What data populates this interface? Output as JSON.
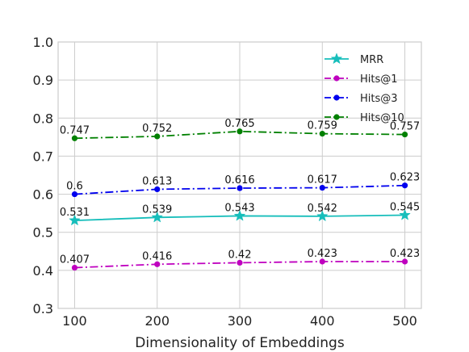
{
  "chart_data": {
    "type": "line",
    "title": "",
    "xlabel": "Dimensionality of Embeddings",
    "ylabel": "",
    "x": [
      100,
      200,
      300,
      400,
      500
    ],
    "x_ticks": [
      "100",
      "200",
      "300",
      "400",
      "500"
    ],
    "ylim": [
      0.3,
      1.0
    ],
    "y_ticks": [
      "0.3",
      "0.4",
      "0.5",
      "0.6",
      "0.7",
      "0.8",
      "0.9",
      "1.0"
    ],
    "grid": true,
    "legend_position": "top-right",
    "series": [
      {
        "name": "MRR",
        "values": [
          0.531,
          0.539,
          0.543,
          0.542,
          0.545
        ],
        "labels": [
          "0.531",
          "0.539",
          "0.543",
          "0.542",
          "0.545"
        ],
        "color": "#17bebb",
        "marker": "star",
        "linestyle": "solid"
      },
      {
        "name": "Hits@1",
        "values": [
          0.407,
          0.416,
          0.42,
          0.423,
          0.423
        ],
        "labels": [
          "0.407",
          "0.416",
          "0.42",
          "0.423",
          "0.423"
        ],
        "color": "#bf00bf",
        "marker": "circle",
        "linestyle": "dashdot"
      },
      {
        "name": "Hits@3",
        "values": [
          0.6,
          0.613,
          0.616,
          0.617,
          0.623
        ],
        "labels": [
          "0.6",
          "0.613",
          "0.616",
          "0.617",
          "0.623"
        ],
        "color": "#0000ee",
        "marker": "circle",
        "linestyle": "dashdot"
      },
      {
        "name": "Hits@10",
        "values": [
          0.747,
          0.752,
          0.765,
          0.759,
          0.757
        ],
        "labels": [
          "0.747",
          "0.752",
          "0.765",
          "0.759",
          "0.757"
        ],
        "color": "#008000",
        "marker": "circle",
        "linestyle": "dashdot"
      }
    ]
  }
}
